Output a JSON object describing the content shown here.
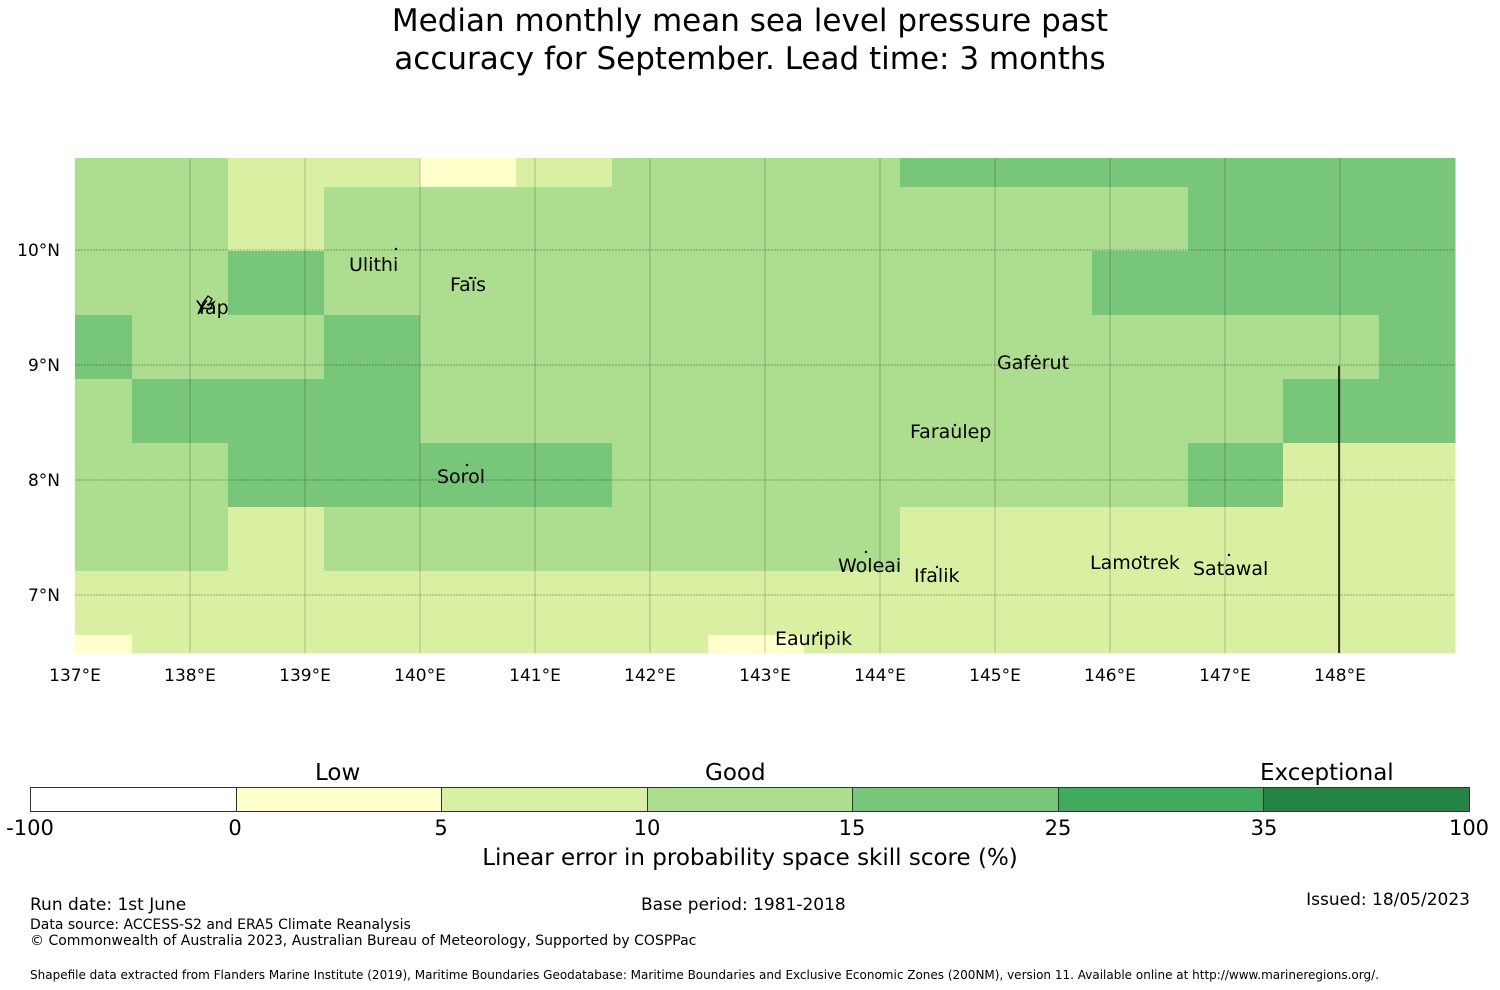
{
  "title": {
    "line1": "Median monthly mean sea level pressure past",
    "line2": "accuracy for September. Lead time: 3 months"
  },
  "map": {
    "lon_range": [
      137,
      149
    ],
    "lat_range": [
      6.5,
      10.8
    ],
    "x_ticks": [
      "137°E",
      "138°E",
      "139°E",
      "140°E",
      "141°E",
      "142°E",
      "143°E",
      "144°E",
      "145°E",
      "146°E",
      "147°E",
      "148°E"
    ],
    "y_ticks": [
      "10°N",
      "9°N",
      "8°N",
      "7°N"
    ],
    "colors": {
      "low": "#ffffcc",
      "good_low": "#d9f0a3",
      "good": "#addd8e",
      "good_high": "#78c679",
      "exceptional_low": "#41ab5d",
      "exceptional": "#238443"
    },
    "places": [
      {
        "name": "Yap",
        "lon": 138.22,
        "lat": 9.5
      },
      {
        "name": "Ulithi",
        "lon": 139.8,
        "lat": 10.0
      },
      {
        "name": "Faïs",
        "lon": 140.44,
        "lat": 9.73
      },
      {
        "name": "Gaferut",
        "lon": 145.37,
        "lat": 9.05
      },
      {
        "name": "Faraulep",
        "lon": 144.52,
        "lat": 8.45
      },
      {
        "name": "Sorol",
        "lon": 140.38,
        "lat": 8.05
      },
      {
        "name": "Woleai",
        "lon": 143.9,
        "lat": 7.33
      },
      {
        "name": "Ifalik",
        "lon": 144.45,
        "lat": 7.25
      },
      {
        "name": "Lamotrek",
        "lon": 146.33,
        "lat": 7.35
      },
      {
        "name": "Satawal",
        "lon": 147.03,
        "lat": 7.35
      },
      {
        "name": "Eauripik",
        "lon": 143.04,
        "lat": 6.7
      }
    ]
  },
  "colorbar": {
    "categories": [
      "Low",
      "Good",
      "Exceptional"
    ],
    "ticks": [
      "-100",
      "0",
      "5",
      "10",
      "15",
      "25",
      "35",
      "100"
    ],
    "colors": [
      "#ffffff",
      "#ffffcc",
      "#d9f0a3",
      "#addd8e",
      "#78c679",
      "#41ab5d",
      "#238443"
    ],
    "label": "Linear error in probability space skill score (%)"
  },
  "footer": {
    "run_date": "Run date: 1st June",
    "base_period": "Base period: 1981-2018",
    "issued": "Issued: 18/05/2023",
    "data_source": "Data source: ACCESS-S2 and ERA5 Climate Reanalysis",
    "copyright": "© Commonwealth of Australia 2023, Australian Bureau of Meteorology, Supported by COSPPac",
    "shapefile": "Shapefile data extracted from Flanders Marine Institute (2019), Maritime Boundaries Geodatabase: Maritime Boundaries and Exclusive Economic Zones (200NM), version 11. Available online at http://www.marineregions.org/."
  }
}
